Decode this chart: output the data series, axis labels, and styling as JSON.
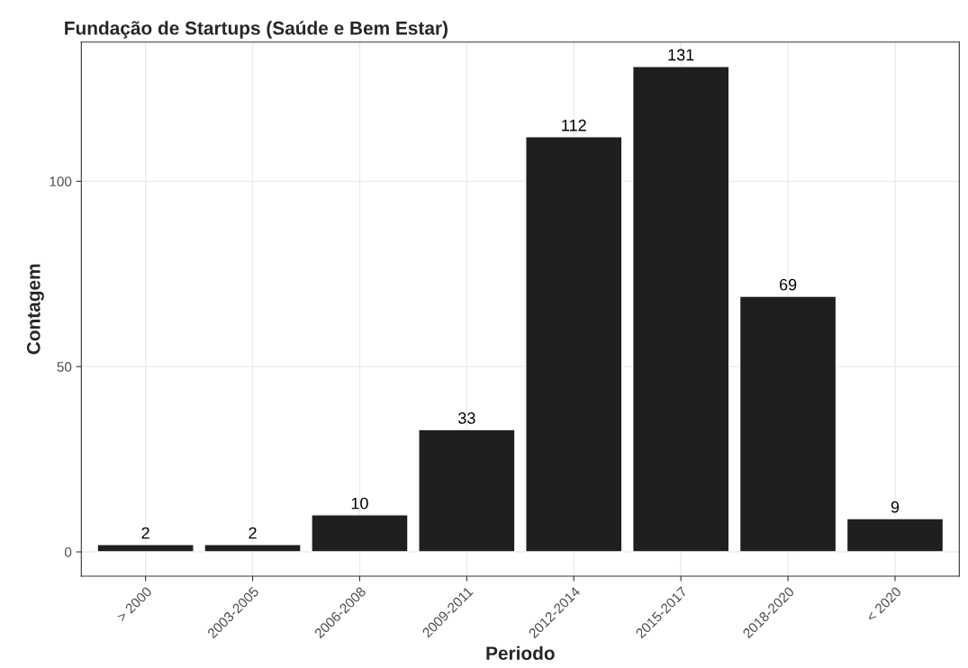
{
  "chart_data": {
    "type": "bar",
    "title": "Fundação de Startups (Saúde e Bem Estar)",
    "xlabel": "Periodo",
    "ylabel": "Contagem",
    "categories": [
      "> 2000",
      "2003-2005",
      "2006-2008",
      "2009-2011",
      "2012-2014",
      "2015-2017",
      "2018-2020",
      "< 2020"
    ],
    "values": [
      2,
      2,
      10,
      33,
      112,
      131,
      69,
      9
    ],
    "color": "#1f1f1f",
    "ylim": [
      -6.55,
      137.55
    ],
    "yticks": [
      0,
      50,
      100
    ],
    "grid": true,
    "data_labels": true
  }
}
